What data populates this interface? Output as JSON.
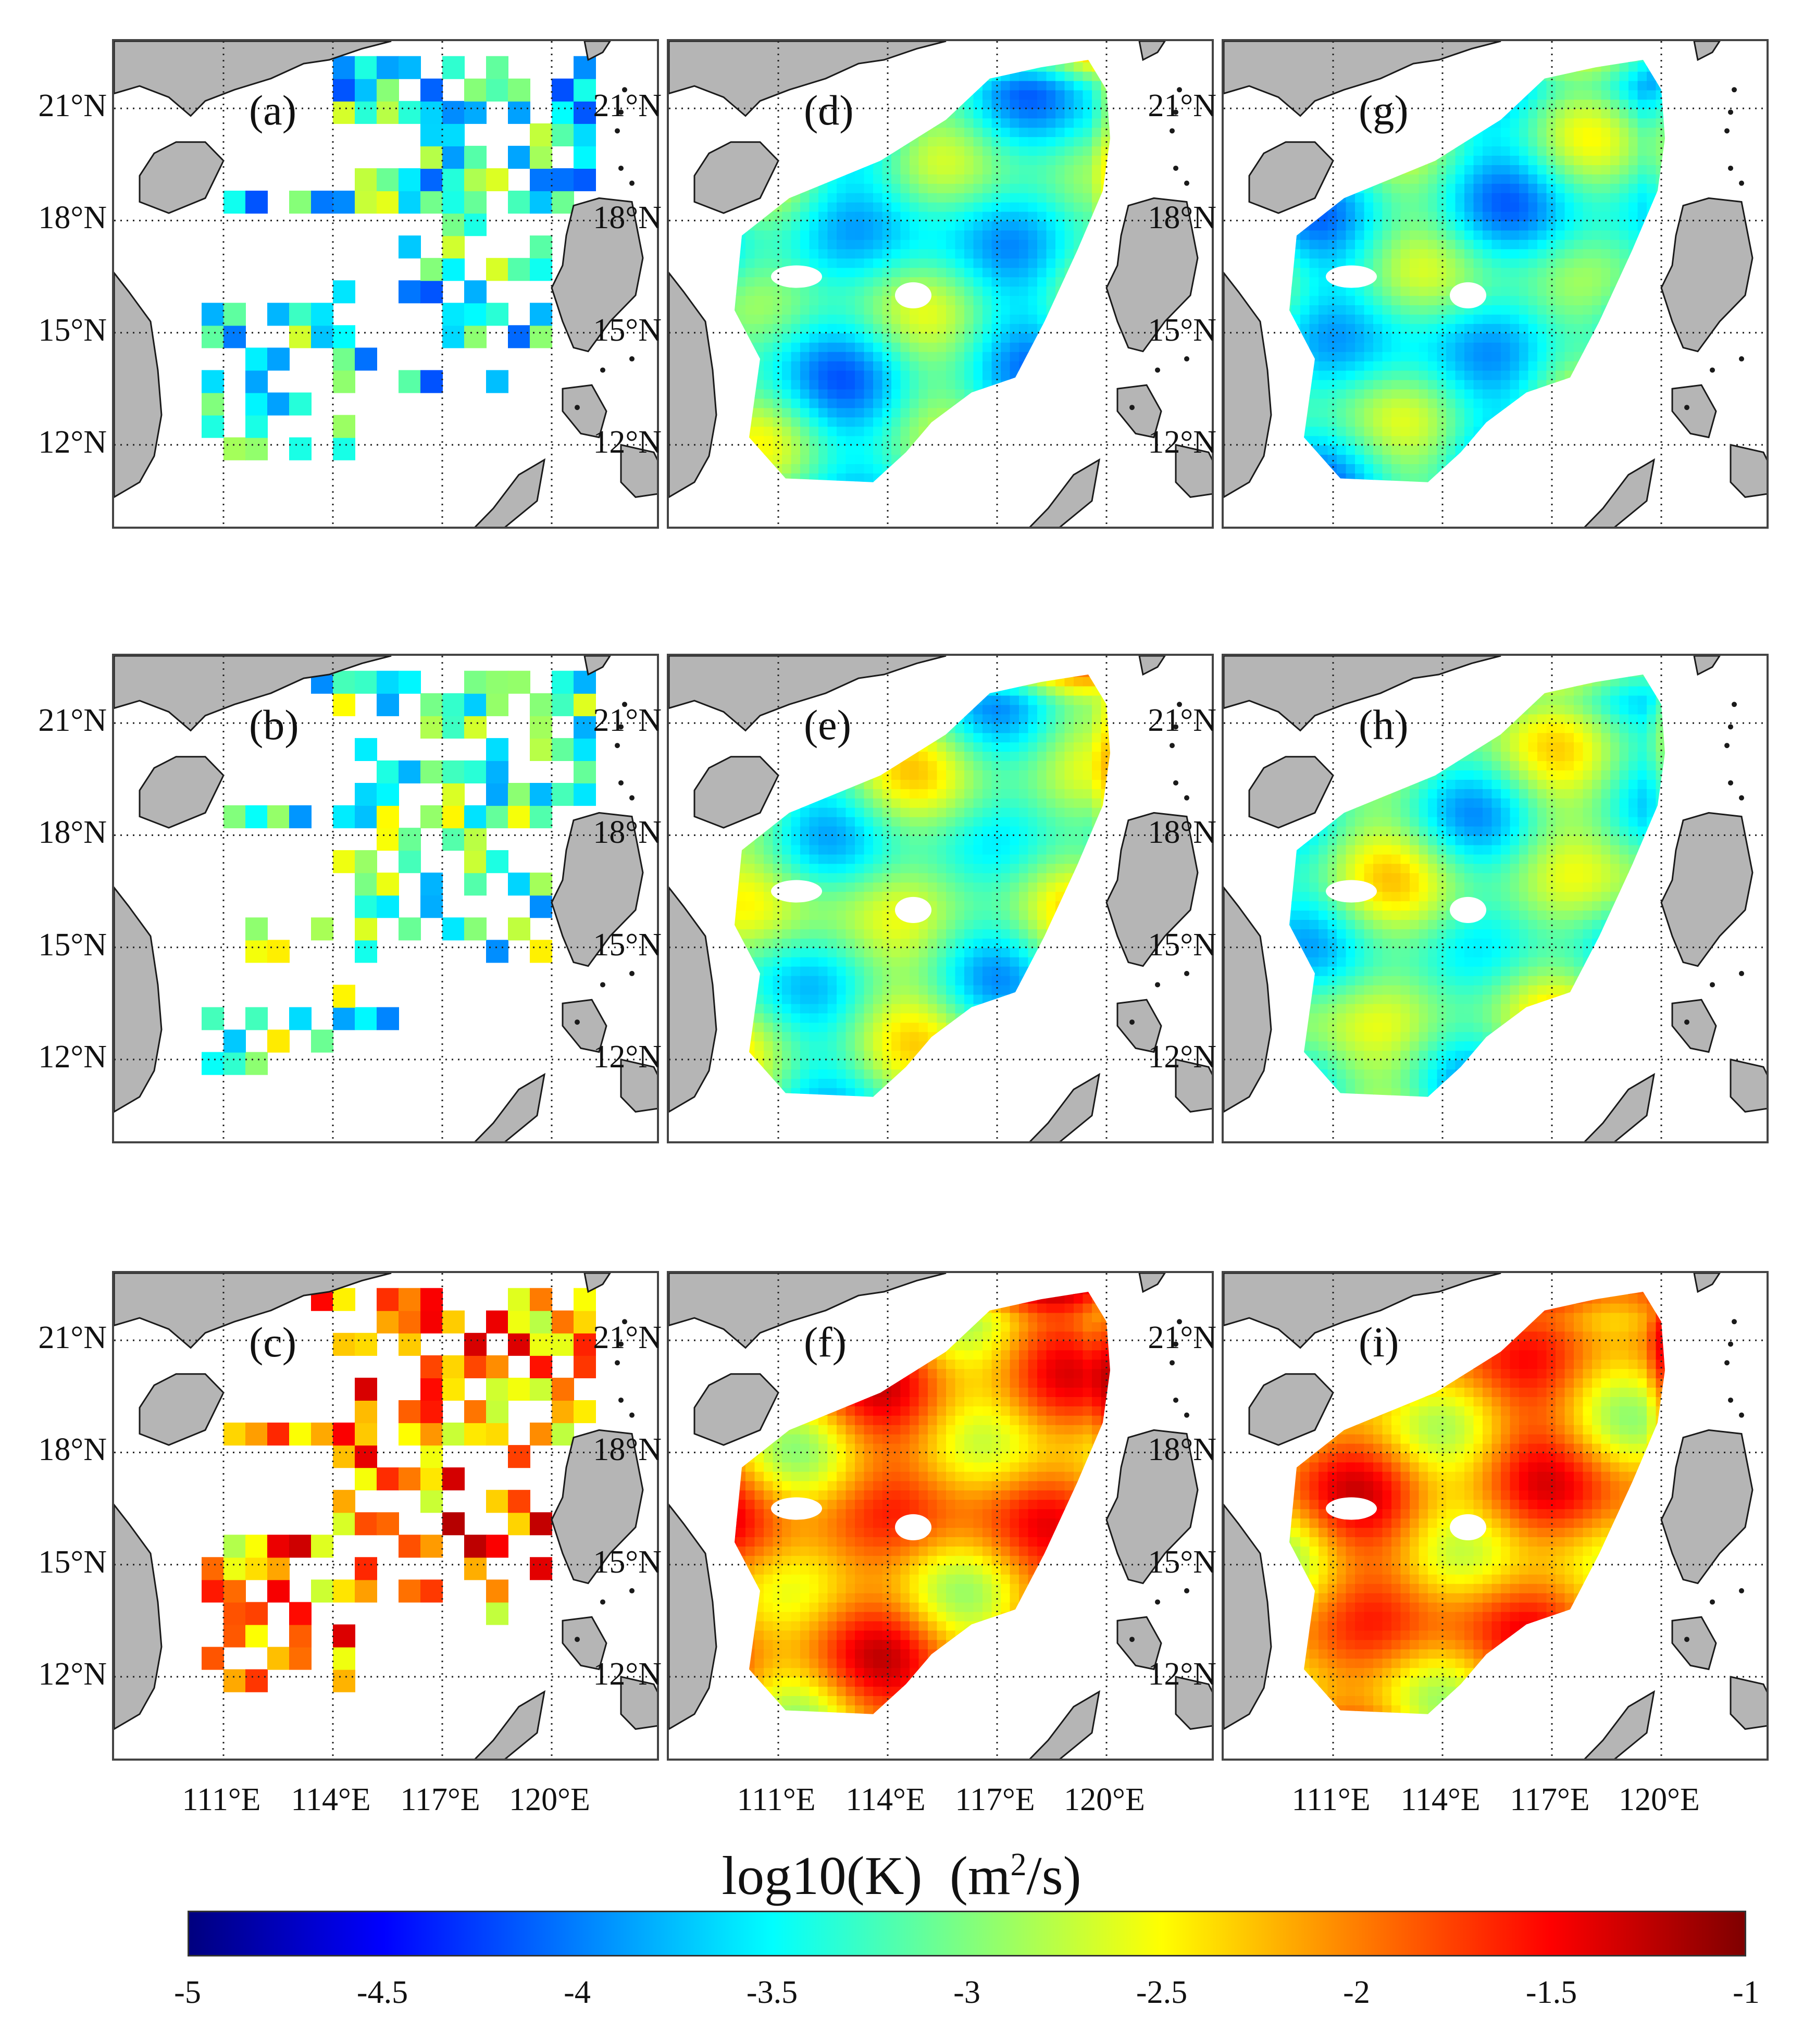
{
  "panel_labels": [
    "(a)",
    "(b)",
    "(c)",
    "(d)",
    "(e)",
    "(f)",
    "(g)",
    "(h)",
    "(i)"
  ],
  "lat_labels": [
    "21°N",
    "18°N",
    "15°N",
    "12°N"
  ],
  "lon_labels": [
    "111°E",
    "114°E",
    "117°E",
    "120°E"
  ],
  "colorbar": {
    "title": "log10(K)",
    "unit_prefix": "(m",
    "unit_exp": "2",
    "unit_suffix": "/s)",
    "ticks": [
      "-5",
      "-4.5",
      "-4",
      "-3.5",
      "-3",
      "-2.5",
      "-2",
      "-1.5",
      "-1"
    ],
    "range": [
      -5,
      -1
    ],
    "colormap": "jet",
    "colors": [
      "#00007f",
      "#0000ff",
      "#007fff",
      "#00ffff",
      "#7fff7f",
      "#ffff00",
      "#ff7f00",
      "#ff0000",
      "#7f0000"
    ]
  },
  "map_colors": {
    "land": "#b5b5b5",
    "ocean": "#ffffff",
    "coast": "#1a1a1a",
    "grid": "#222222"
  },
  "extent": {
    "lon": [
      108,
      123
    ],
    "lat": [
      9.7,
      22.8
    ]
  },
  "rows": [
    {
      "station_mean": -3.4,
      "field_mean": -3.35
    },
    {
      "station_mean": -3.2,
      "field_mean": -3.1
    },
    {
      "station_mean": -2.0,
      "field_mean": -2.1
    }
  ]
}
